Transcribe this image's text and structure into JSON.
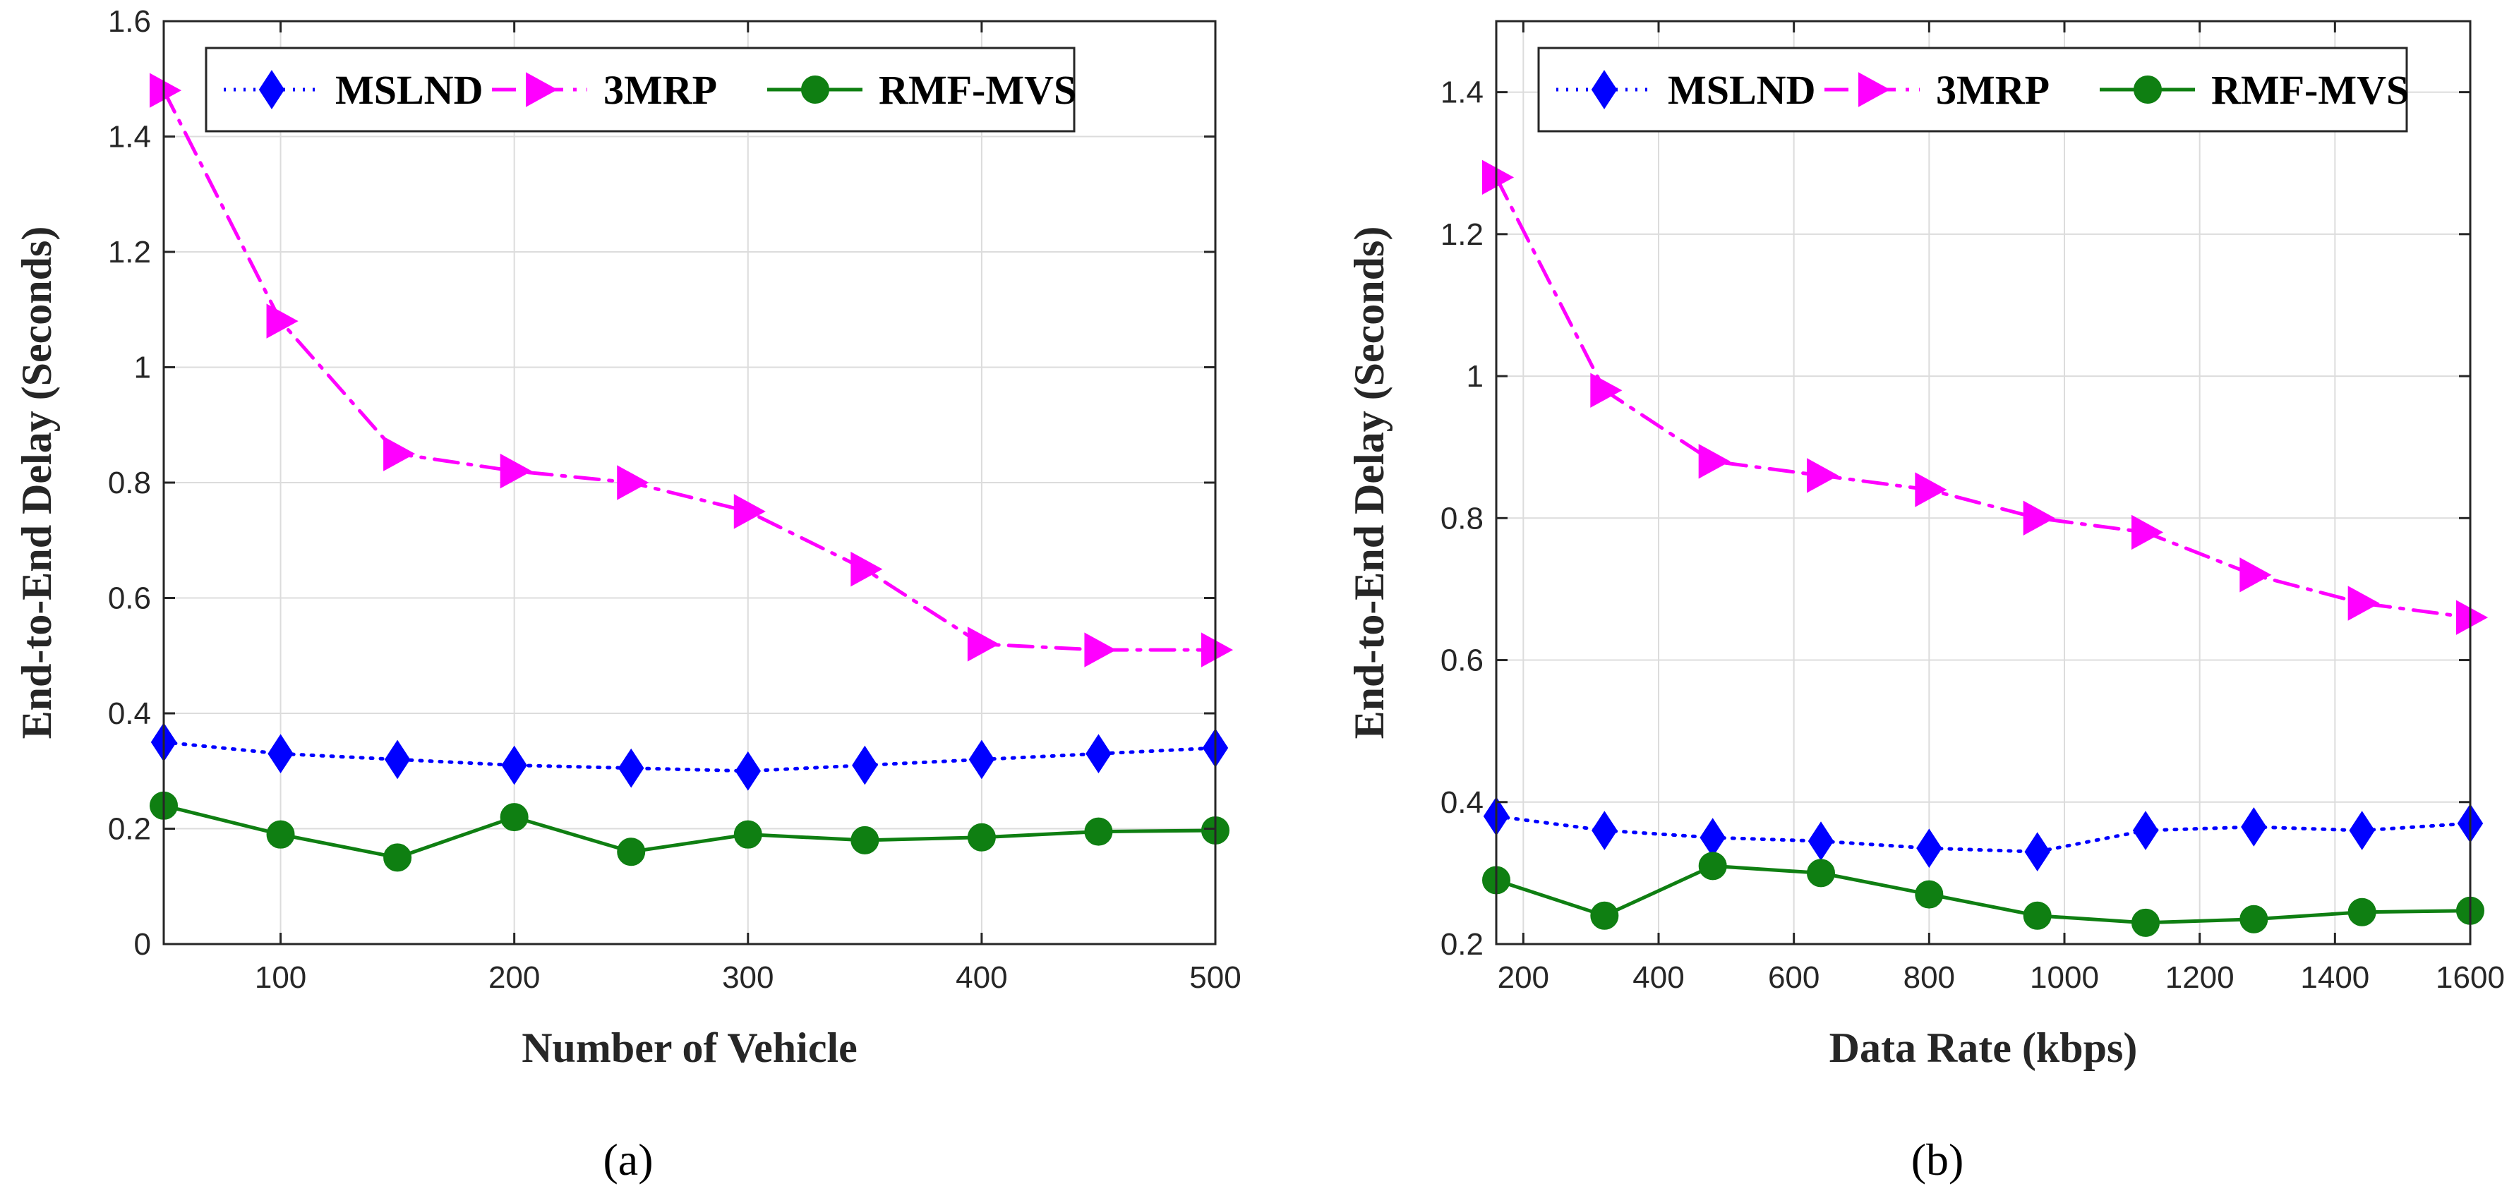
{
  "colors": {
    "MSLND": "#0000ff",
    "3MRP": "#ff00ff",
    "RMF-MVS": "#0f7f12"
  },
  "markers": {
    "MSLND": "diamond",
    "3MRP": "triangle-right",
    "RMF-MVS": "circle"
  },
  "line_styles": {
    "MSLND": "dotted",
    "3MRP": "dash-dot",
    "RMF-MVS": "solid"
  },
  "chart_data": [
    {
      "type": "line",
      "panel_label": "(a)",
      "xlabel": "Number of Vehicle",
      "ylabel": "End-to-End Delay (Seconds)",
      "xlim": [
        50,
        500
      ],
      "ylim": [
        0,
        1.6
      ],
      "xticks": [
        100,
        200,
        300,
        400,
        500
      ],
      "yticks": [
        0,
        0.2,
        0.4,
        0.6,
        0.8,
        1,
        1.2,
        1.4,
        1.6
      ],
      "grid": true,
      "legend": "top, horizontal",
      "x": [
        50,
        100,
        150,
        200,
        250,
        300,
        350,
        400,
        450,
        500
      ],
      "series": [
        {
          "name": "MSLND",
          "values": [
            0.35,
            0.33,
            0.32,
            0.31,
            0.305,
            0.3,
            0.31,
            0.32,
            0.33,
            0.34
          ]
        },
        {
          "name": "3MRP",
          "values": [
            1.48,
            1.08,
            0.85,
            0.82,
            0.8,
            0.75,
            0.65,
            0.52,
            0.51,
            0.51
          ]
        },
        {
          "name": "RMF-MVS",
          "values": [
            0.24,
            0.19,
            0.15,
            0.22,
            0.16,
            0.19,
            0.18,
            0.185,
            0.195,
            0.197
          ]
        }
      ]
    },
    {
      "type": "line",
      "panel_label": "(b)",
      "xlabel": "Data Rate (kbps)",
      "ylabel": "End-to-End Delay (Seconds)",
      "xlim": [
        160,
        1600
      ],
      "ylim": [
        0.2,
        1.5
      ],
      "xticks": [
        200,
        400,
        600,
        800,
        1000,
        1200,
        1400,
        1600
      ],
      "yticks": [
        0.2,
        0.4,
        0.6,
        0.8,
        1,
        1.2,
        1.4
      ],
      "grid": true,
      "legend": "top, horizontal",
      "x": [
        160,
        320,
        480,
        640,
        800,
        960,
        1120,
        1280,
        1440,
        1600
      ],
      "series": [
        {
          "name": "MSLND",
          "values": [
            0.38,
            0.36,
            0.35,
            0.345,
            0.335,
            0.33,
            0.36,
            0.365,
            0.36,
            0.37
          ]
        },
        {
          "name": "3MRP",
          "values": [
            1.28,
            0.98,
            0.88,
            0.86,
            0.84,
            0.8,
            0.78,
            0.72,
            0.68,
            0.66
          ]
        },
        {
          "name": "RMF-MVS",
          "values": [
            0.29,
            0.24,
            0.31,
            0.3,
            0.27,
            0.24,
            0.23,
            0.235,
            0.245,
            0.247
          ]
        }
      ]
    }
  ]
}
